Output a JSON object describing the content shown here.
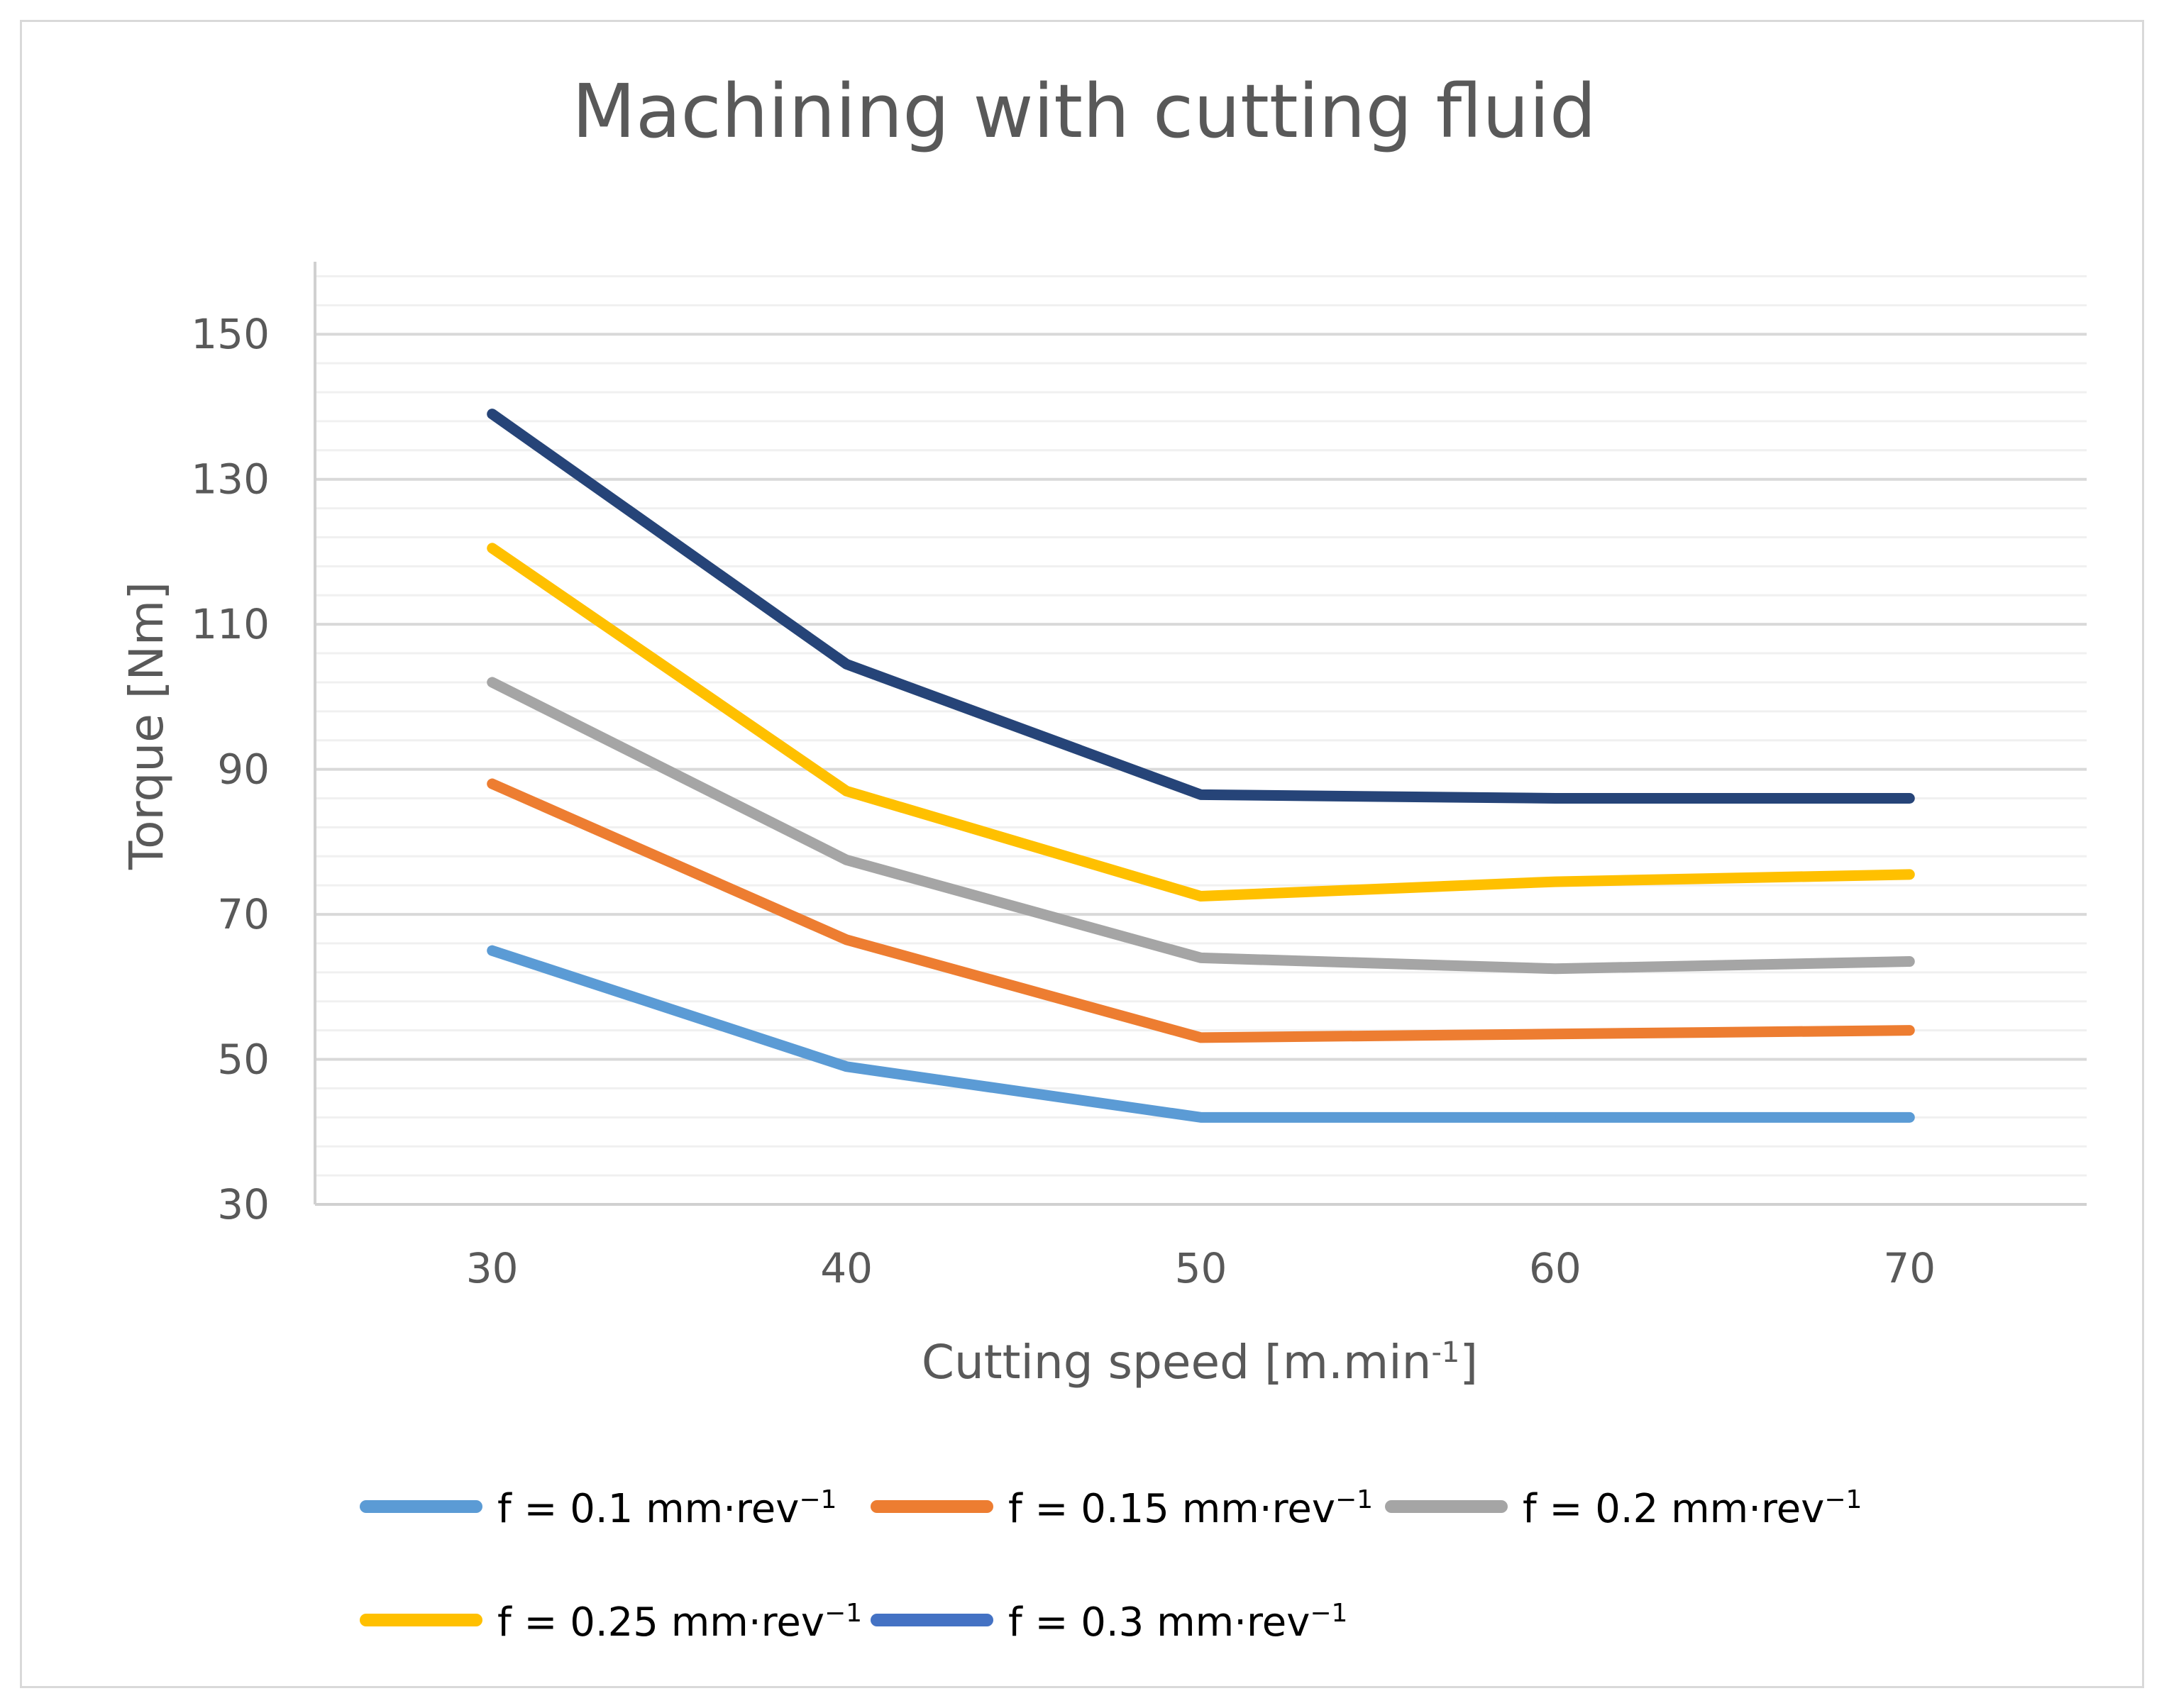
{
  "chart_data": {
    "type": "line",
    "title": "Machining with cutting fluid",
    "xlabel": "Cutting speed [m.min",
    "xlabel_superscript": "-1",
    "xlabel_suffix": "]",
    "ylabel": "Torque [Nm]",
    "x": [
      30,
      40,
      50,
      60,
      70
    ],
    "x_tick_labels": [
      "30",
      "40",
      "50",
      "60",
      "70"
    ],
    "ylim": [
      30,
      160
    ],
    "y_tick_values": [
      30,
      50,
      70,
      90,
      110,
      130,
      150
    ],
    "y_tick_labels": [
      "30",
      "50",
      "70",
      "90",
      "110",
      "130",
      "150"
    ],
    "minor_grid_step": 4,
    "grid": true,
    "legend_position": "bottom",
    "series": [
      {
        "name": "f = 0.1 mm·rev",
        "sup": "−1",
        "color": "#5b9bd5",
        "values": [
          65,
          49,
          42,
          42,
          42
        ]
      },
      {
        "name": "f = 0.15 mm·rev",
        "sup": "−1",
        "color": "#ed7d31",
        "values": [
          88,
          66.5,
          53,
          53.5,
          54
        ]
      },
      {
        "name": "f = 0.2 mm·rev",
        "sup": "−1",
        "color": "#a5a5a5",
        "values": [
          102,
          77.5,
          64,
          62.5,
          63.5
        ]
      },
      {
        "name": "f = 0.25 mm·rev",
        "sup": "−1",
        "color": "#ffc000",
        "values": [
          120.5,
          87,
          72.5,
          74.5,
          75.5
        ]
      },
      {
        "name": "f = 0.3 mm·rev",
        "sup": "−1",
        "color": "#264478",
        "legend_color": "#4472c4",
        "values": [
          139,
          104.5,
          86.5,
          86,
          86
        ]
      }
    ]
  }
}
